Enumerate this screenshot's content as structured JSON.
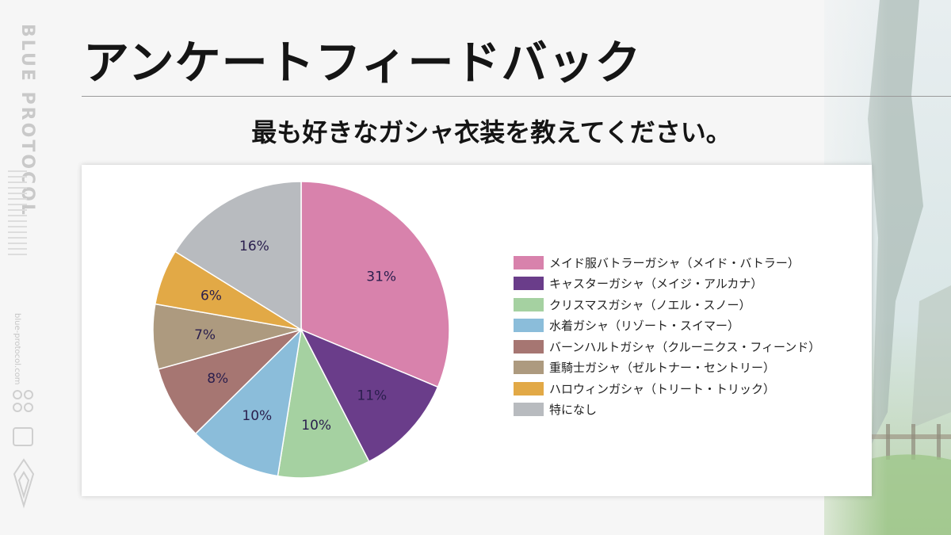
{
  "slide": {
    "title": "アンケートフィードバック",
    "brand": "BLUE PROTOCOL",
    "site": "blue-protocol.com"
  },
  "chart_data": {
    "type": "pie",
    "title": "最も好きなガシャ衣装を教えてください。",
    "legend_position": "right",
    "slices": [
      {
        "label": "メイド服バトラーガシャ（メイド・バトラー）",
        "value": 31,
        "display": "31%",
        "color": "#d882ac"
      },
      {
        "label": "キャスターガシャ（メイジ・アルカナ）",
        "value": 11,
        "display": "11%",
        "color": "#6a3d8a"
      },
      {
        "label": "クリスマスガシャ（ノエル・スノー）",
        "value": 10,
        "display": "10%",
        "color": "#a5d1a1"
      },
      {
        "label": "水着ガシャ（リゾート・スイマー）",
        "value": 10,
        "display": "10%",
        "color": "#8bbdda"
      },
      {
        "label": "バーンハルトガシャ（クルーニクス・フィーンド）",
        "value": 8,
        "display": "8%",
        "color": "#a67672"
      },
      {
        "label": "重騎士ガシャ（ゼルトナー・セントリー）",
        "value": 7,
        "display": "7%",
        "color": "#ad9a7f"
      },
      {
        "label": "ハロウィンガシャ（トリート・トリック）",
        "value": 6,
        "display": "6%",
        "color": "#e2a946"
      },
      {
        "label": "特になし",
        "value": 16,
        "display": "16%",
        "color": "#b8bbbf"
      }
    ]
  }
}
